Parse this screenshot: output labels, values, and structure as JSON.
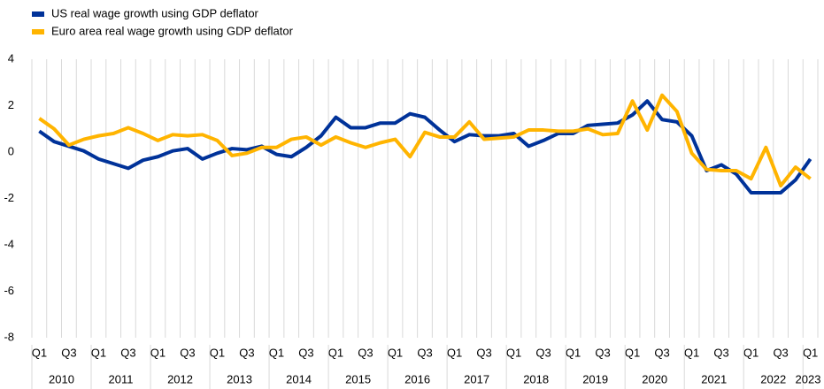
{
  "chart_data": {
    "type": "line",
    "categories": [
      "Q1",
      null,
      "Q3",
      null,
      "Q1",
      null,
      "Q3",
      null,
      "Q1",
      null,
      "Q3",
      null,
      "Q1",
      null,
      "Q3",
      null,
      "Q1",
      null,
      "Q3",
      null,
      "Q1",
      null,
      "Q3",
      null,
      "Q1",
      null,
      "Q3",
      null,
      "Q1",
      null,
      "Q3",
      null,
      "Q1",
      null,
      "Q3",
      null,
      "Q1",
      null,
      "Q3",
      null,
      "Q1",
      null,
      "Q3",
      null,
      "Q1",
      null,
      "Q3",
      null,
      "Q1",
      null,
      "Q3",
      null,
      "Q1"
    ],
    "years": [
      "2010",
      "2011",
      "2012",
      "2013",
      "2014",
      "2015",
      "2016",
      "2017",
      "2018",
      "2019",
      "2020",
      "2021",
      "2022",
      "2023"
    ],
    "series": [
      {
        "name": "US real wage growth using GDP deflator",
        "color": "#003299",
        "values": [
          0.9,
          0.45,
          0.25,
          0.05,
          -0.3,
          -0.5,
          -0.7,
          -0.35,
          -0.2,
          0.05,
          0.15,
          -0.3,
          -0.05,
          0.15,
          0.1,
          0.25,
          -0.1,
          -0.2,
          0.2,
          0.7,
          1.5,
          1.05,
          1.05,
          1.25,
          1.25,
          1.65,
          1.5,
          0.95,
          0.45,
          0.75,
          0.7,
          0.7,
          0.8,
          0.25,
          0.5,
          0.8,
          0.8,
          1.15,
          1.2,
          1.25,
          1.6,
          2.2,
          1.4,
          1.3,
          0.7,
          -0.8,
          -0.55,
          -0.95,
          -1.75,
          -1.75,
          -1.75,
          -1.2,
          -0.3
        ]
      },
      {
        "name": "Euro area real wage growth using GDP deflator",
        "color": "#ffb400",
        "values": [
          1.45,
          1.0,
          0.3,
          0.55,
          0.7,
          0.8,
          1.05,
          0.8,
          0.5,
          0.75,
          0.7,
          0.75,
          0.5,
          -0.15,
          -0.05,
          0.2,
          0.2,
          0.55,
          0.65,
          0.3,
          0.65,
          0.4,
          0.2,
          0.4,
          0.55,
          -0.2,
          0.85,
          0.65,
          0.65,
          1.3,
          0.55,
          0.6,
          0.65,
          0.95,
          0.95,
          0.9,
          0.9,
          1.0,
          0.75,
          0.8,
          2.2,
          0.95,
          2.45,
          1.75,
          -0.05,
          -0.75,
          -0.8,
          -0.8,
          -1.15,
          0.2,
          -1.45,
          -0.65,
          -1.15
        ]
      }
    ],
    "ylim": [
      -8,
      4
    ],
    "yticks": [
      -8,
      -6,
      -4,
      -2,
      0,
      2,
      4
    ],
    "grid": true
  }
}
